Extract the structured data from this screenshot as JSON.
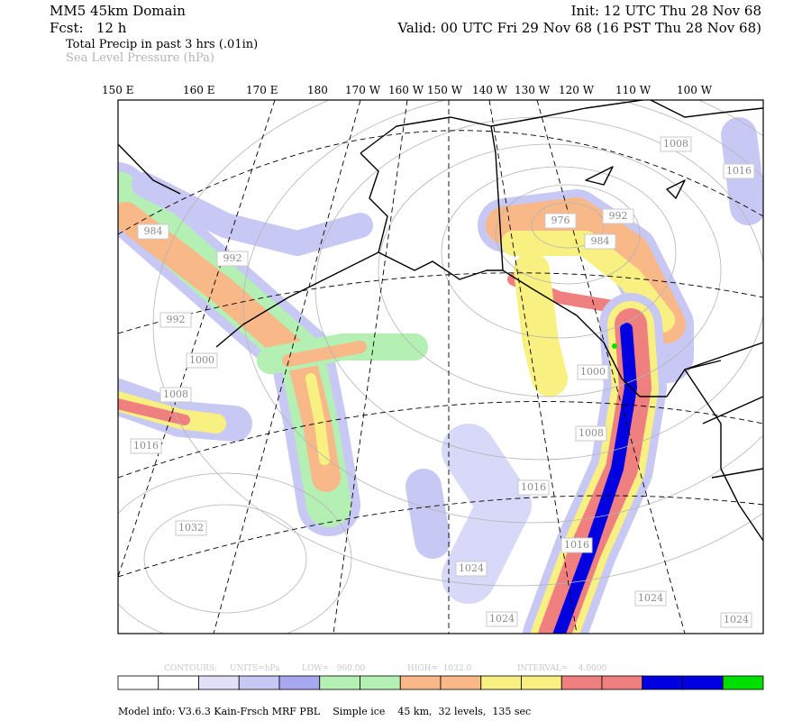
{
  "header": {
    "model": "MM5 45km Domain",
    "forecast": "Fcst:   12 h",
    "init": "Init: 12 UTC Thu 28 Nov 68",
    "valid": "Valid: 00 UTC Fri 29 Nov 68 (16 PST Thu 28 Nov 68)",
    "field1": "Total Precip in past 3 hrs (.01in)",
    "field2": "Sea Level Pressure (hPa)"
  },
  "longitudes": [
    "150 E",
    "160 E",
    "170 E",
    "180",
    "170 W",
    "160 W",
    "150 W",
    "140 W",
    "130 W",
    "120 W",
    "110 W",
    "100 W"
  ],
  "contour_labels": [
    "1008",
    "1016",
    "976",
    "992",
    "984",
    "984",
    "992",
    "992",
    "1000",
    "1008",
    "1016",
    "1000",
    "1008",
    "1016",
    "1016",
    "1032",
    "1024",
    "1024",
    "1024",
    "1024"
  ],
  "contour_info": {
    "contours": "CONTOURS:",
    "units": "UNITS=hPa",
    "low": "LOW=   960.00",
    "high": "HIGH=  1032.0",
    "interval": "INTERVAL=    4.0000"
  },
  "footer": "Model info: V3.6.3 Kain-Frsch MRF PBL    Simple ice    45 km,  32 levels,  135 sec"
}
